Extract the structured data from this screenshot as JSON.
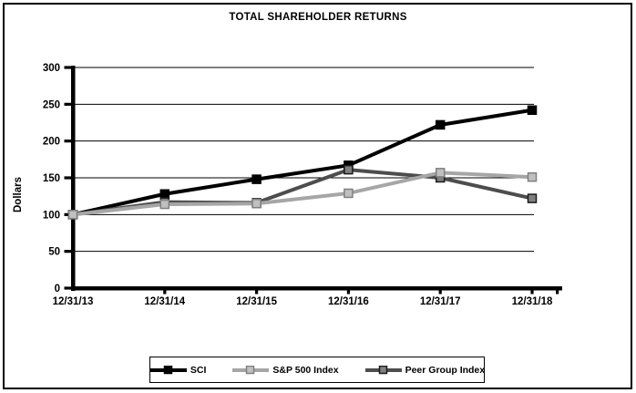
{
  "frame": {
    "background": "#ffffff",
    "border_color": "#000000"
  },
  "chart_data": {
    "type": "line",
    "title": "TOTAL SHAREHOLDER RETURNS",
    "xlabel": "",
    "ylabel": "Dollars",
    "categories": [
      "12/31/13",
      "12/31/14",
      "12/31/15",
      "12/31/16",
      "12/31/17",
      "12/31/18"
    ],
    "y_ticks": [
      0,
      50,
      100,
      150,
      200,
      250,
      300
    ],
    "ylim": [
      0,
      300
    ],
    "grid": "horizontal",
    "legend_position": "bottom",
    "series": [
      {
        "name": "SCI",
        "values": [
          100,
          128,
          148,
          167,
          222,
          242
        ],
        "color": "#000000",
        "marker": "square",
        "marker_fill": "#000000",
        "marker_stroke": "#000000"
      },
      {
        "name": "S&P 500 Index",
        "values": [
          100,
          114,
          115,
          129,
          157,
          151
        ],
        "color": "#a6a6a6",
        "marker": "square",
        "marker_fill": "#c0c0c0",
        "marker_stroke": "#808080"
      },
      {
        "name": "Peer Group Index",
        "values": [
          100,
          117,
          116,
          161,
          150,
          122
        ],
        "color": "#4d4d4d",
        "marker": "square",
        "marker_fill": "#808080",
        "marker_stroke": "#1a1a1a"
      }
    ]
  }
}
